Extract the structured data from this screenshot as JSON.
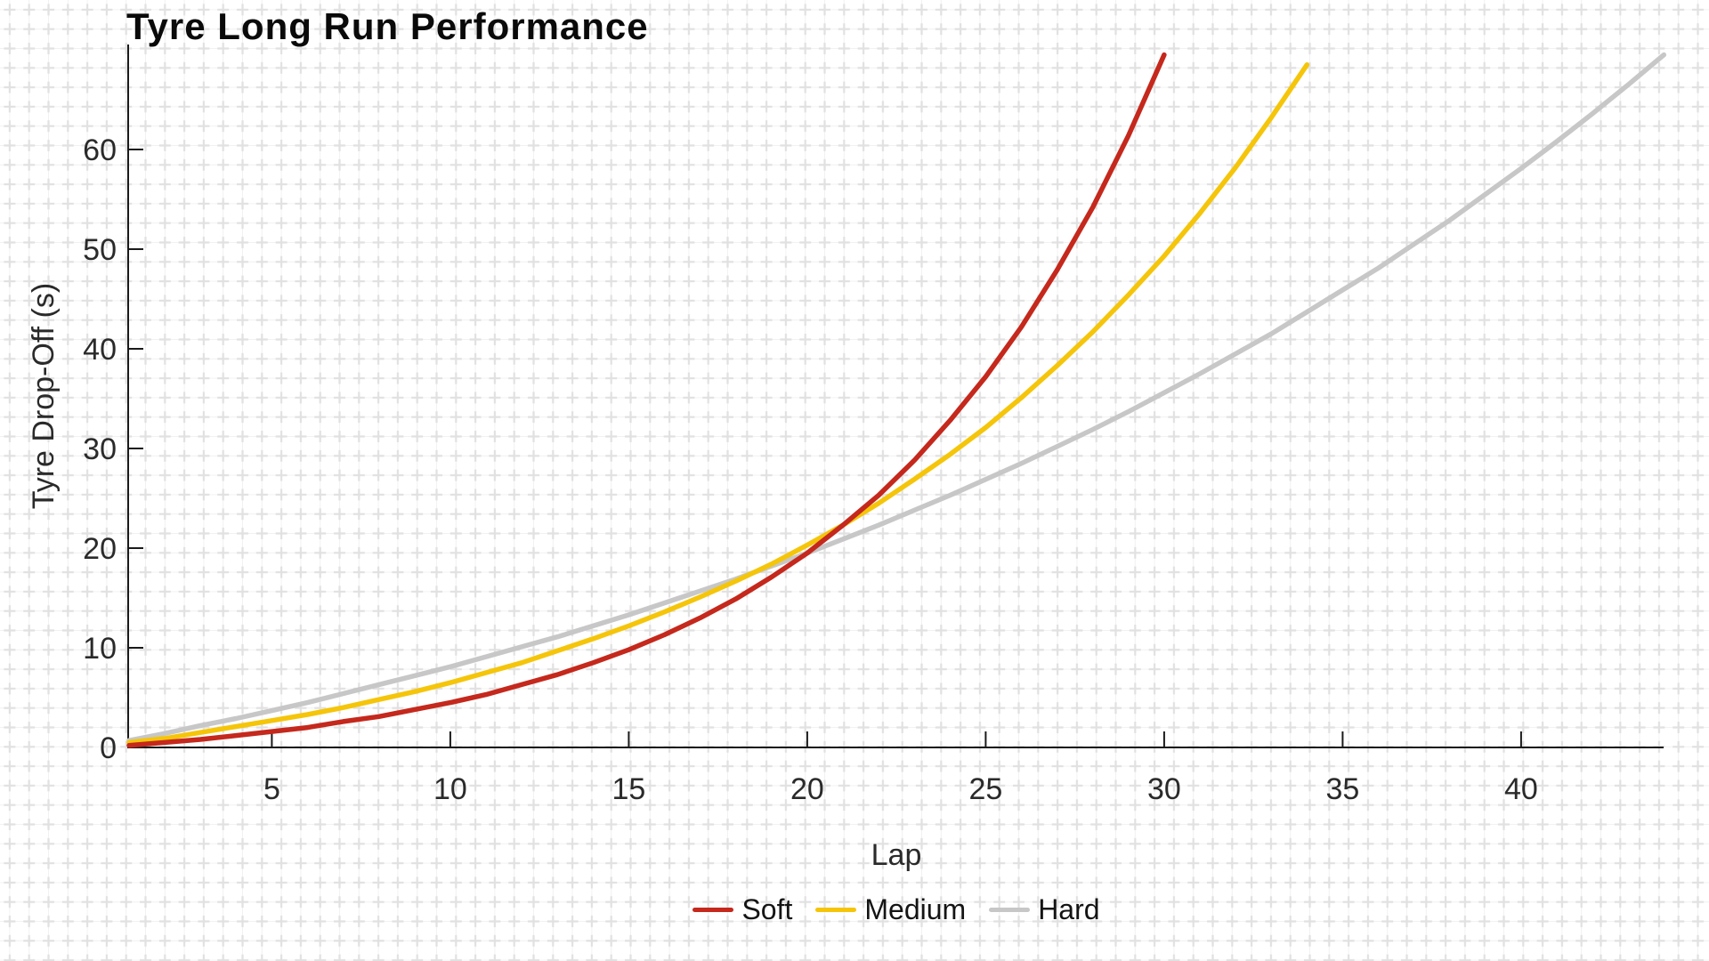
{
  "chart": {
    "title": "Tyre Long Run Performance",
    "xlabel": "Lap",
    "ylabel": "Tyre Drop-Off (s)"
  },
  "chart_data": {
    "type": "line",
    "title": "Tyre Long Run Performance",
    "xlabel": "Lap",
    "ylabel": "Tyre Drop-Off (s)",
    "xlim": [
      1,
      44
    ],
    "ylim": [
      0,
      70
    ],
    "x_ticks": [
      5,
      10,
      15,
      20,
      25,
      30,
      35,
      40
    ],
    "y_ticks": [
      0,
      10,
      20,
      30,
      40,
      50,
      60
    ],
    "grid": "off (decorative light-gray plus-cross background pattern instead)",
    "legend_position": "bottom-center",
    "tick_style": "inward ticks, left and bottom spines only",
    "first_lap": 1,
    "lap_step": 1,
    "series": [
      {
        "name": "Soft",
        "color": "#c5281c",
        "values": [
          0.2,
          0.5,
          0.8,
          1.2,
          1.6,
          2.0,
          2.6,
          3.1,
          3.8,
          4.5,
          5.3,
          6.3,
          7.3,
          8.5,
          9.8,
          11.3,
          13.0,
          14.9,
          17.1,
          19.5,
          22.3,
          25.3,
          28.8,
          32.8,
          37.2,
          42.2,
          47.9,
          54.2,
          61.4,
          69.5
        ]
      },
      {
        "name": "Medium",
        "color": "#f5c50a",
        "values": [
          0.5,
          0.9,
          1.5,
          2.1,
          2.7,
          3.3,
          4.0,
          4.8,
          5.6,
          6.5,
          7.5,
          8.5,
          9.7,
          10.9,
          12.2,
          13.6,
          15.1,
          16.7,
          18.4,
          20.3,
          22.3,
          24.5,
          26.9,
          29.4,
          32.1,
          35.1,
          38.3,
          41.7,
          45.4,
          49.3,
          53.6,
          58.2,
          63.2,
          68.5
        ]
      },
      {
        "name": "Hard",
        "color": "#c7c7c7",
        "values": [
          0.7,
          1.4,
          2.2,
          2.9,
          3.7,
          4.5,
          5.4,
          6.3,
          7.2,
          8.1,
          9.1,
          10.1,
          11.1,
          12.2,
          13.3,
          14.5,
          15.7,
          16.9,
          18.2,
          19.5,
          20.9,
          22.3,
          23.8,
          25.3,
          26.9,
          28.5,
          30.2,
          31.9,
          33.7,
          35.6,
          37.5,
          39.5,
          41.5,
          43.7,
          45.9,
          48.1,
          50.5,
          52.9,
          55.5,
          58.1,
          60.8,
          63.6,
          66.5,
          69.5
        ]
      }
    ],
    "colors": {
      "background": "#ffffff",
      "pattern_cross": "#e1e1e1",
      "pattern_line": "#f2f2f2",
      "spine": "#1a1a1a",
      "text": "#2a2a2a"
    }
  }
}
